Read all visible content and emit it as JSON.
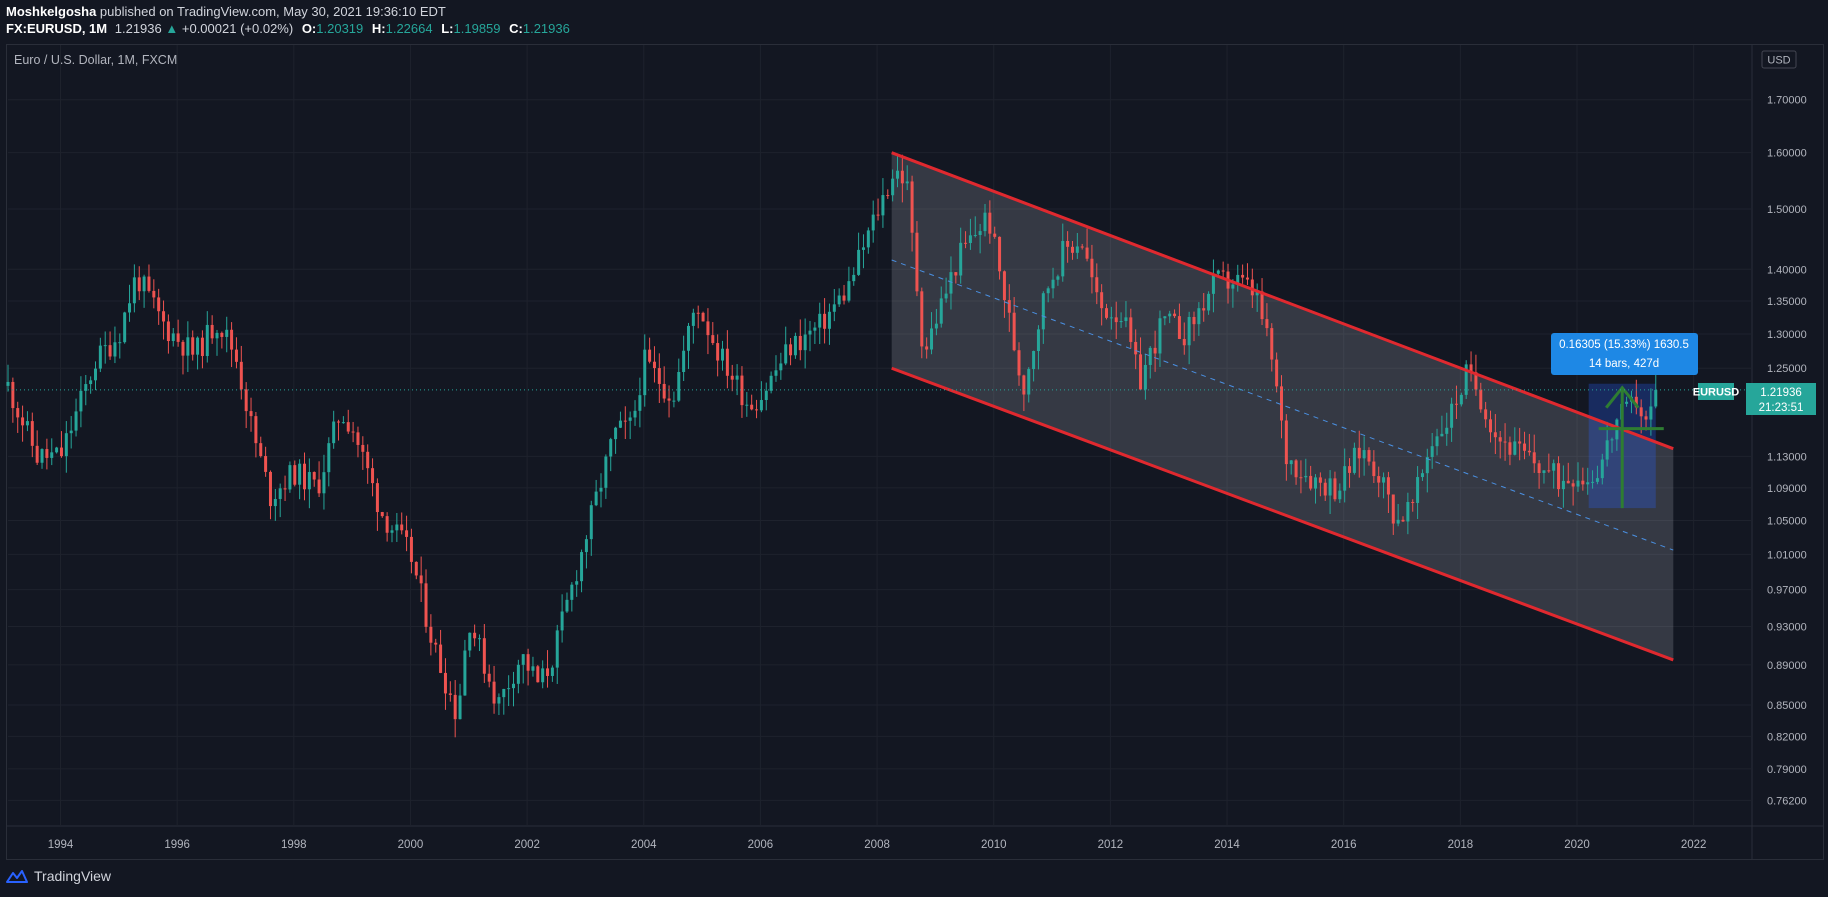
{
  "header": {
    "author": "Moshkelgosha",
    "published_text": "published on TradingView.com, May 30, 2021 19:36:10 EDT",
    "symbol": "FX:EURUSD, 1M",
    "last": "1.21936",
    "change_arrow": "▲",
    "change": "+0.00021 (+0.02%)",
    "ohlc": [
      {
        "label": "O:",
        "value": "1.20319"
      },
      {
        "label": "H:",
        "value": "1.22664"
      },
      {
        "label": "L:",
        "value": "1.19859"
      },
      {
        "label": "C:",
        "value": "1.21936"
      }
    ]
  },
  "chart_title": "Euro / U.S. Dollar, 1M, FXCM",
  "currency_label": "USD",
  "price_tag": {
    "symbol": "EURUSD",
    "price": "1.21936",
    "countdown": "21:23:51"
  },
  "measure_label": {
    "line1": "0.16305 (15.33%) 1630.5",
    "line2": "14 bars, 427d"
  },
  "footer": {
    "brand": "TradingView"
  },
  "colors": {
    "background": "#131722",
    "up": "#26a69a",
    "down": "#ef5350",
    "channel": "#e0292f",
    "measure": "#1e88e5"
  },
  "chart_data": {
    "type": "candlestick",
    "title": "Euro / U.S. Dollar, 1M, FXCM",
    "x_range": [
      1993.1,
      2023.0
    ],
    "y_range": [
      0.74,
      1.81
    ],
    "y_scale": "log",
    "x_ticks": [
      "1994",
      "1996",
      "1998",
      "2000",
      "2002",
      "2004",
      "2006",
      "2008",
      "2010",
      "2012",
      "2014",
      "2016",
      "2018",
      "2020",
      "2022"
    ],
    "y_ticks": [
      "1.70000",
      "1.60000",
      "1.50000",
      "1.40000",
      "1.35000",
      "1.30000",
      "1.25000",
      "1.13000",
      "1.09000",
      "1.05000",
      "1.01000",
      "0.97000",
      "0.93000",
      "0.89000",
      "0.85000",
      "0.82000",
      "0.79000",
      "0.76200"
    ],
    "last_close": 1.21936,
    "close_path": [
      [
        1993.1,
        1.225
      ],
      [
        1993.6,
        1.13
      ],
      [
        1994.0,
        1.13
      ],
      [
        1994.6,
        1.26
      ],
      [
        1995.0,
        1.3
      ],
      [
        1995.3,
        1.39
      ],
      [
        1995.8,
        1.31
      ],
      [
        1996.3,
        1.27
      ],
      [
        1996.7,
        1.32
      ],
      [
        1997.0,
        1.27
      ],
      [
        1997.3,
        1.16
      ],
      [
        1997.6,
        1.08
      ],
      [
        1998.0,
        1.11
      ],
      [
        1998.4,
        1.09
      ],
      [
        1998.8,
        1.19
      ],
      [
        1999.0,
        1.17
      ],
      [
        1999.5,
        1.06
      ],
      [
        2000.0,
        1.01
      ],
      [
        2000.4,
        0.91
      ],
      [
        2000.8,
        0.84
      ],
      [
        2001.0,
        0.94
      ],
      [
        2001.5,
        0.85
      ],
      [
        2001.9,
        0.9
      ],
      [
        2002.2,
        0.87
      ],
      [
        2002.4,
        0.89
      ],
      [
        2002.8,
        0.98
      ],
      [
        2003.2,
        1.08
      ],
      [
        2003.5,
        1.16
      ],
      [
        2003.8,
        1.17
      ],
      [
        2004.0,
        1.26
      ],
      [
        2004.5,
        1.21
      ],
      [
        2004.9,
        1.35
      ],
      [
        2005.3,
        1.27
      ],
      [
        2005.8,
        1.2
      ],
      [
        2006.0,
        1.21
      ],
      [
        2006.5,
        1.28
      ],
      [
        2007.0,
        1.31
      ],
      [
        2007.5,
        1.37
      ],
      [
        2007.9,
        1.47
      ],
      [
        2008.3,
        1.57
      ],
      [
        2008.5,
        1.55
      ],
      [
        2008.8,
        1.27
      ],
      [
        2009.0,
        1.32
      ],
      [
        2009.4,
        1.42
      ],
      [
        2009.9,
        1.49
      ],
      [
        2010.2,
        1.35
      ],
      [
        2010.5,
        1.22
      ],
      [
        2010.9,
        1.37
      ],
      [
        2011.2,
        1.43
      ],
      [
        2011.5,
        1.45
      ],
      [
        2011.8,
        1.34
      ],
      [
        2012.2,
        1.33
      ],
      [
        2012.5,
        1.23
      ],
      [
        2012.9,
        1.32
      ],
      [
        2013.3,
        1.3
      ],
      [
        2013.8,
        1.38
      ],
      [
        2014.2,
        1.38
      ],
      [
        2014.5,
        1.36
      ],
      [
        2014.8,
        1.25
      ],
      [
        2015.0,
        1.13
      ],
      [
        2015.5,
        1.1
      ],
      [
        2015.9,
        1.09
      ],
      [
        2016.3,
        1.14
      ],
      [
        2016.6,
        1.11
      ],
      [
        2016.9,
        1.05
      ],
      [
        2017.2,
        1.07
      ],
      [
        2017.5,
        1.15
      ],
      [
        2017.8,
        1.18
      ],
      [
        2018.1,
        1.24
      ],
      [
        2018.3,
        1.22
      ],
      [
        2018.6,
        1.16
      ],
      [
        2018.9,
        1.14
      ],
      [
        2019.3,
        1.12
      ],
      [
        2019.7,
        1.1
      ],
      [
        2020.0,
        1.11
      ],
      [
        2020.2,
        1.1
      ],
      [
        2020.4,
        1.12
      ],
      [
        2020.7,
        1.18
      ],
      [
        2020.9,
        1.19
      ],
      [
        2021.0,
        1.21
      ],
      [
        2021.2,
        1.17
      ],
      [
        2021.35,
        1.2194
      ]
    ],
    "channel": {
      "upper": [
        [
          2008.25,
          1.6
        ],
        [
          2021.65,
          1.14
        ]
      ],
      "lower": [
        [
          2008.25,
          1.25
        ],
        [
          2021.65,
          0.895
        ]
      ],
      "median": [
        [
          2008.25,
          1.415
        ],
        [
          2021.65,
          1.015
        ]
      ]
    },
    "measure": {
      "x_range": [
        2020.2,
        2021.35
      ],
      "y_range": [
        1.065,
        1.228
      ]
    }
  }
}
